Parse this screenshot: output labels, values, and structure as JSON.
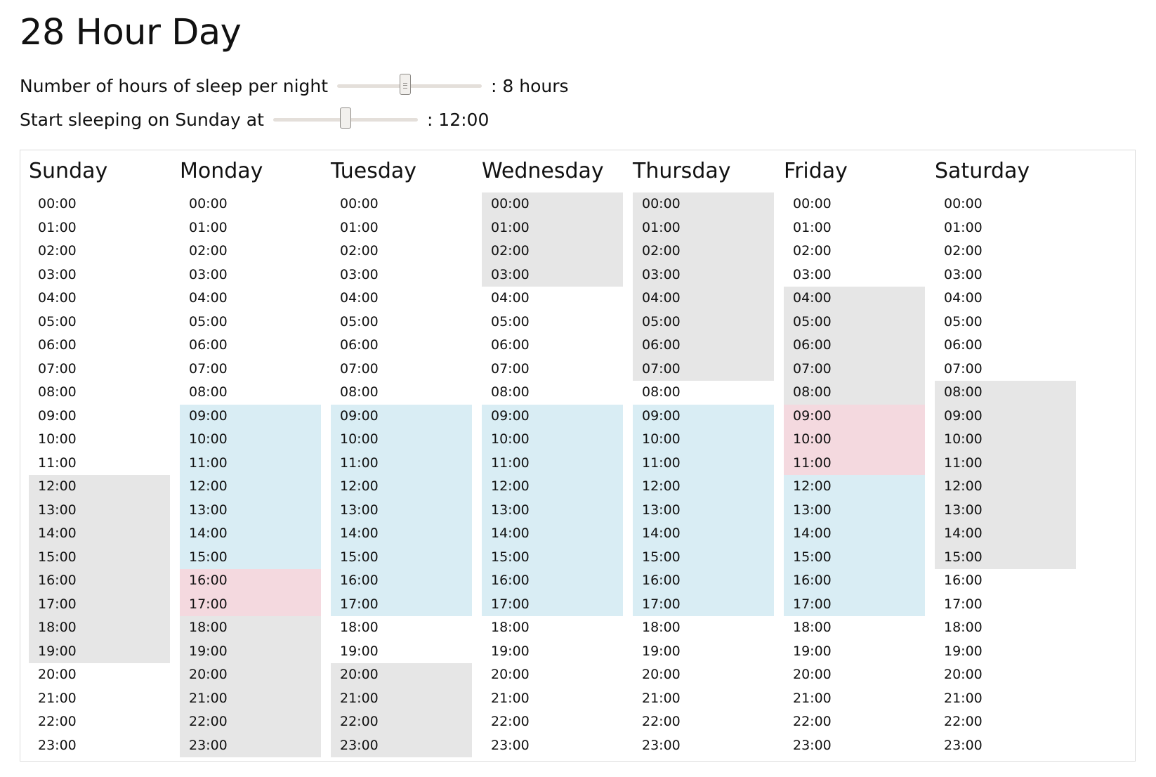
{
  "title": "28 Hour Day",
  "controls": {
    "sleep_hours": {
      "label": "Number of hours of sleep per night",
      "value_text": ": 8 hours",
      "slider_fraction": 0.47
    },
    "start_time": {
      "label": "Start sleeping on Sunday at",
      "value_text": ": 12:00",
      "slider_fraction": 0.5
    }
  },
  "colors": {
    "sleep": "#e6e6e6",
    "work": "#d9edf4",
    "conflict": "#f4d9df"
  },
  "calendar": {
    "days": [
      {
        "name": "Sunday",
        "hours": [
          {
            "t": "00:00",
            "s": ""
          },
          {
            "t": "01:00",
            "s": ""
          },
          {
            "t": "02:00",
            "s": ""
          },
          {
            "t": "03:00",
            "s": ""
          },
          {
            "t": "04:00",
            "s": ""
          },
          {
            "t": "05:00",
            "s": ""
          },
          {
            "t": "06:00",
            "s": ""
          },
          {
            "t": "07:00",
            "s": ""
          },
          {
            "t": "08:00",
            "s": ""
          },
          {
            "t": "09:00",
            "s": ""
          },
          {
            "t": "10:00",
            "s": ""
          },
          {
            "t": "11:00",
            "s": ""
          },
          {
            "t": "12:00",
            "s": "sleep"
          },
          {
            "t": "13:00",
            "s": "sleep"
          },
          {
            "t": "14:00",
            "s": "sleep"
          },
          {
            "t": "15:00",
            "s": "sleep"
          },
          {
            "t": "16:00",
            "s": "sleep"
          },
          {
            "t": "17:00",
            "s": "sleep"
          },
          {
            "t": "18:00",
            "s": "sleep"
          },
          {
            "t": "19:00",
            "s": "sleep"
          },
          {
            "t": "20:00",
            "s": ""
          },
          {
            "t": "21:00",
            "s": ""
          },
          {
            "t": "22:00",
            "s": ""
          },
          {
            "t": "23:00",
            "s": ""
          }
        ]
      },
      {
        "name": "Monday",
        "hours": [
          {
            "t": "00:00",
            "s": ""
          },
          {
            "t": "01:00",
            "s": ""
          },
          {
            "t": "02:00",
            "s": ""
          },
          {
            "t": "03:00",
            "s": ""
          },
          {
            "t": "04:00",
            "s": ""
          },
          {
            "t": "05:00",
            "s": ""
          },
          {
            "t": "06:00",
            "s": ""
          },
          {
            "t": "07:00",
            "s": ""
          },
          {
            "t": "08:00",
            "s": ""
          },
          {
            "t": "09:00",
            "s": "work"
          },
          {
            "t": "10:00",
            "s": "work"
          },
          {
            "t": "11:00",
            "s": "work"
          },
          {
            "t": "12:00",
            "s": "work"
          },
          {
            "t": "13:00",
            "s": "work"
          },
          {
            "t": "14:00",
            "s": "work"
          },
          {
            "t": "15:00",
            "s": "work"
          },
          {
            "t": "16:00",
            "s": "conflict"
          },
          {
            "t": "17:00",
            "s": "conflict"
          },
          {
            "t": "18:00",
            "s": "sleep"
          },
          {
            "t": "19:00",
            "s": "sleep"
          },
          {
            "t": "20:00",
            "s": "sleep"
          },
          {
            "t": "21:00",
            "s": "sleep"
          },
          {
            "t": "22:00",
            "s": "sleep"
          },
          {
            "t": "23:00",
            "s": "sleep"
          }
        ]
      },
      {
        "name": "Tuesday",
        "hours": [
          {
            "t": "00:00",
            "s": ""
          },
          {
            "t": "01:00",
            "s": ""
          },
          {
            "t": "02:00",
            "s": ""
          },
          {
            "t": "03:00",
            "s": ""
          },
          {
            "t": "04:00",
            "s": ""
          },
          {
            "t": "05:00",
            "s": ""
          },
          {
            "t": "06:00",
            "s": ""
          },
          {
            "t": "07:00",
            "s": ""
          },
          {
            "t": "08:00",
            "s": ""
          },
          {
            "t": "09:00",
            "s": "work"
          },
          {
            "t": "10:00",
            "s": "work"
          },
          {
            "t": "11:00",
            "s": "work"
          },
          {
            "t": "12:00",
            "s": "work"
          },
          {
            "t": "13:00",
            "s": "work"
          },
          {
            "t": "14:00",
            "s": "work"
          },
          {
            "t": "15:00",
            "s": "work"
          },
          {
            "t": "16:00",
            "s": "work"
          },
          {
            "t": "17:00",
            "s": "work"
          },
          {
            "t": "18:00",
            "s": ""
          },
          {
            "t": "19:00",
            "s": ""
          },
          {
            "t": "20:00",
            "s": "sleep"
          },
          {
            "t": "21:00",
            "s": "sleep"
          },
          {
            "t": "22:00",
            "s": "sleep"
          },
          {
            "t": "23:00",
            "s": "sleep"
          }
        ]
      },
      {
        "name": "Wednesday",
        "hours": [
          {
            "t": "00:00",
            "s": "sleep"
          },
          {
            "t": "01:00",
            "s": "sleep"
          },
          {
            "t": "02:00",
            "s": "sleep"
          },
          {
            "t": "03:00",
            "s": "sleep"
          },
          {
            "t": "04:00",
            "s": ""
          },
          {
            "t": "05:00",
            "s": ""
          },
          {
            "t": "06:00",
            "s": ""
          },
          {
            "t": "07:00",
            "s": ""
          },
          {
            "t": "08:00",
            "s": ""
          },
          {
            "t": "09:00",
            "s": "work"
          },
          {
            "t": "10:00",
            "s": "work"
          },
          {
            "t": "11:00",
            "s": "work"
          },
          {
            "t": "12:00",
            "s": "work"
          },
          {
            "t": "13:00",
            "s": "work"
          },
          {
            "t": "14:00",
            "s": "work"
          },
          {
            "t": "15:00",
            "s": "work"
          },
          {
            "t": "16:00",
            "s": "work"
          },
          {
            "t": "17:00",
            "s": "work"
          },
          {
            "t": "18:00",
            "s": ""
          },
          {
            "t": "19:00",
            "s": ""
          },
          {
            "t": "20:00",
            "s": ""
          },
          {
            "t": "21:00",
            "s": ""
          },
          {
            "t": "22:00",
            "s": ""
          },
          {
            "t": "23:00",
            "s": ""
          }
        ]
      },
      {
        "name": "Thursday",
        "hours": [
          {
            "t": "00:00",
            "s": "sleep"
          },
          {
            "t": "01:00",
            "s": "sleep"
          },
          {
            "t": "02:00",
            "s": "sleep"
          },
          {
            "t": "03:00",
            "s": "sleep"
          },
          {
            "t": "04:00",
            "s": "sleep"
          },
          {
            "t": "05:00",
            "s": "sleep"
          },
          {
            "t": "06:00",
            "s": "sleep"
          },
          {
            "t": "07:00",
            "s": "sleep"
          },
          {
            "t": "08:00",
            "s": ""
          },
          {
            "t": "09:00",
            "s": "work"
          },
          {
            "t": "10:00",
            "s": "work"
          },
          {
            "t": "11:00",
            "s": "work"
          },
          {
            "t": "12:00",
            "s": "work"
          },
          {
            "t": "13:00",
            "s": "work"
          },
          {
            "t": "14:00",
            "s": "work"
          },
          {
            "t": "15:00",
            "s": "work"
          },
          {
            "t": "16:00",
            "s": "work"
          },
          {
            "t": "17:00",
            "s": "work"
          },
          {
            "t": "18:00",
            "s": ""
          },
          {
            "t": "19:00",
            "s": ""
          },
          {
            "t": "20:00",
            "s": ""
          },
          {
            "t": "21:00",
            "s": ""
          },
          {
            "t": "22:00",
            "s": ""
          },
          {
            "t": "23:00",
            "s": ""
          }
        ]
      },
      {
        "name": "Friday",
        "hours": [
          {
            "t": "00:00",
            "s": ""
          },
          {
            "t": "01:00",
            "s": ""
          },
          {
            "t": "02:00",
            "s": ""
          },
          {
            "t": "03:00",
            "s": ""
          },
          {
            "t": "04:00",
            "s": "sleep"
          },
          {
            "t": "05:00",
            "s": "sleep"
          },
          {
            "t": "06:00",
            "s": "sleep"
          },
          {
            "t": "07:00",
            "s": "sleep"
          },
          {
            "t": "08:00",
            "s": "sleep"
          },
          {
            "t": "09:00",
            "s": "conflict"
          },
          {
            "t": "10:00",
            "s": "conflict"
          },
          {
            "t": "11:00",
            "s": "conflict"
          },
          {
            "t": "12:00",
            "s": "work"
          },
          {
            "t": "13:00",
            "s": "work"
          },
          {
            "t": "14:00",
            "s": "work"
          },
          {
            "t": "15:00",
            "s": "work"
          },
          {
            "t": "16:00",
            "s": "work"
          },
          {
            "t": "17:00",
            "s": "work"
          },
          {
            "t": "18:00",
            "s": ""
          },
          {
            "t": "19:00",
            "s": ""
          },
          {
            "t": "20:00",
            "s": ""
          },
          {
            "t": "21:00",
            "s": ""
          },
          {
            "t": "22:00",
            "s": ""
          },
          {
            "t": "23:00",
            "s": ""
          }
        ]
      },
      {
        "name": "Saturday",
        "hours": [
          {
            "t": "00:00",
            "s": ""
          },
          {
            "t": "01:00",
            "s": ""
          },
          {
            "t": "02:00",
            "s": ""
          },
          {
            "t": "03:00",
            "s": ""
          },
          {
            "t": "04:00",
            "s": ""
          },
          {
            "t": "05:00",
            "s": ""
          },
          {
            "t": "06:00",
            "s": ""
          },
          {
            "t": "07:00",
            "s": ""
          },
          {
            "t": "08:00",
            "s": "sleep"
          },
          {
            "t": "09:00",
            "s": "sleep"
          },
          {
            "t": "10:00",
            "s": "sleep"
          },
          {
            "t": "11:00",
            "s": "sleep"
          },
          {
            "t": "12:00",
            "s": "sleep"
          },
          {
            "t": "13:00",
            "s": "sleep"
          },
          {
            "t": "14:00",
            "s": "sleep"
          },
          {
            "t": "15:00",
            "s": "sleep"
          },
          {
            "t": "16:00",
            "s": ""
          },
          {
            "t": "17:00",
            "s": ""
          },
          {
            "t": "18:00",
            "s": ""
          },
          {
            "t": "19:00",
            "s": ""
          },
          {
            "t": "20:00",
            "s": ""
          },
          {
            "t": "21:00",
            "s": ""
          },
          {
            "t": "22:00",
            "s": ""
          },
          {
            "t": "23:00",
            "s": ""
          }
        ]
      }
    ]
  }
}
